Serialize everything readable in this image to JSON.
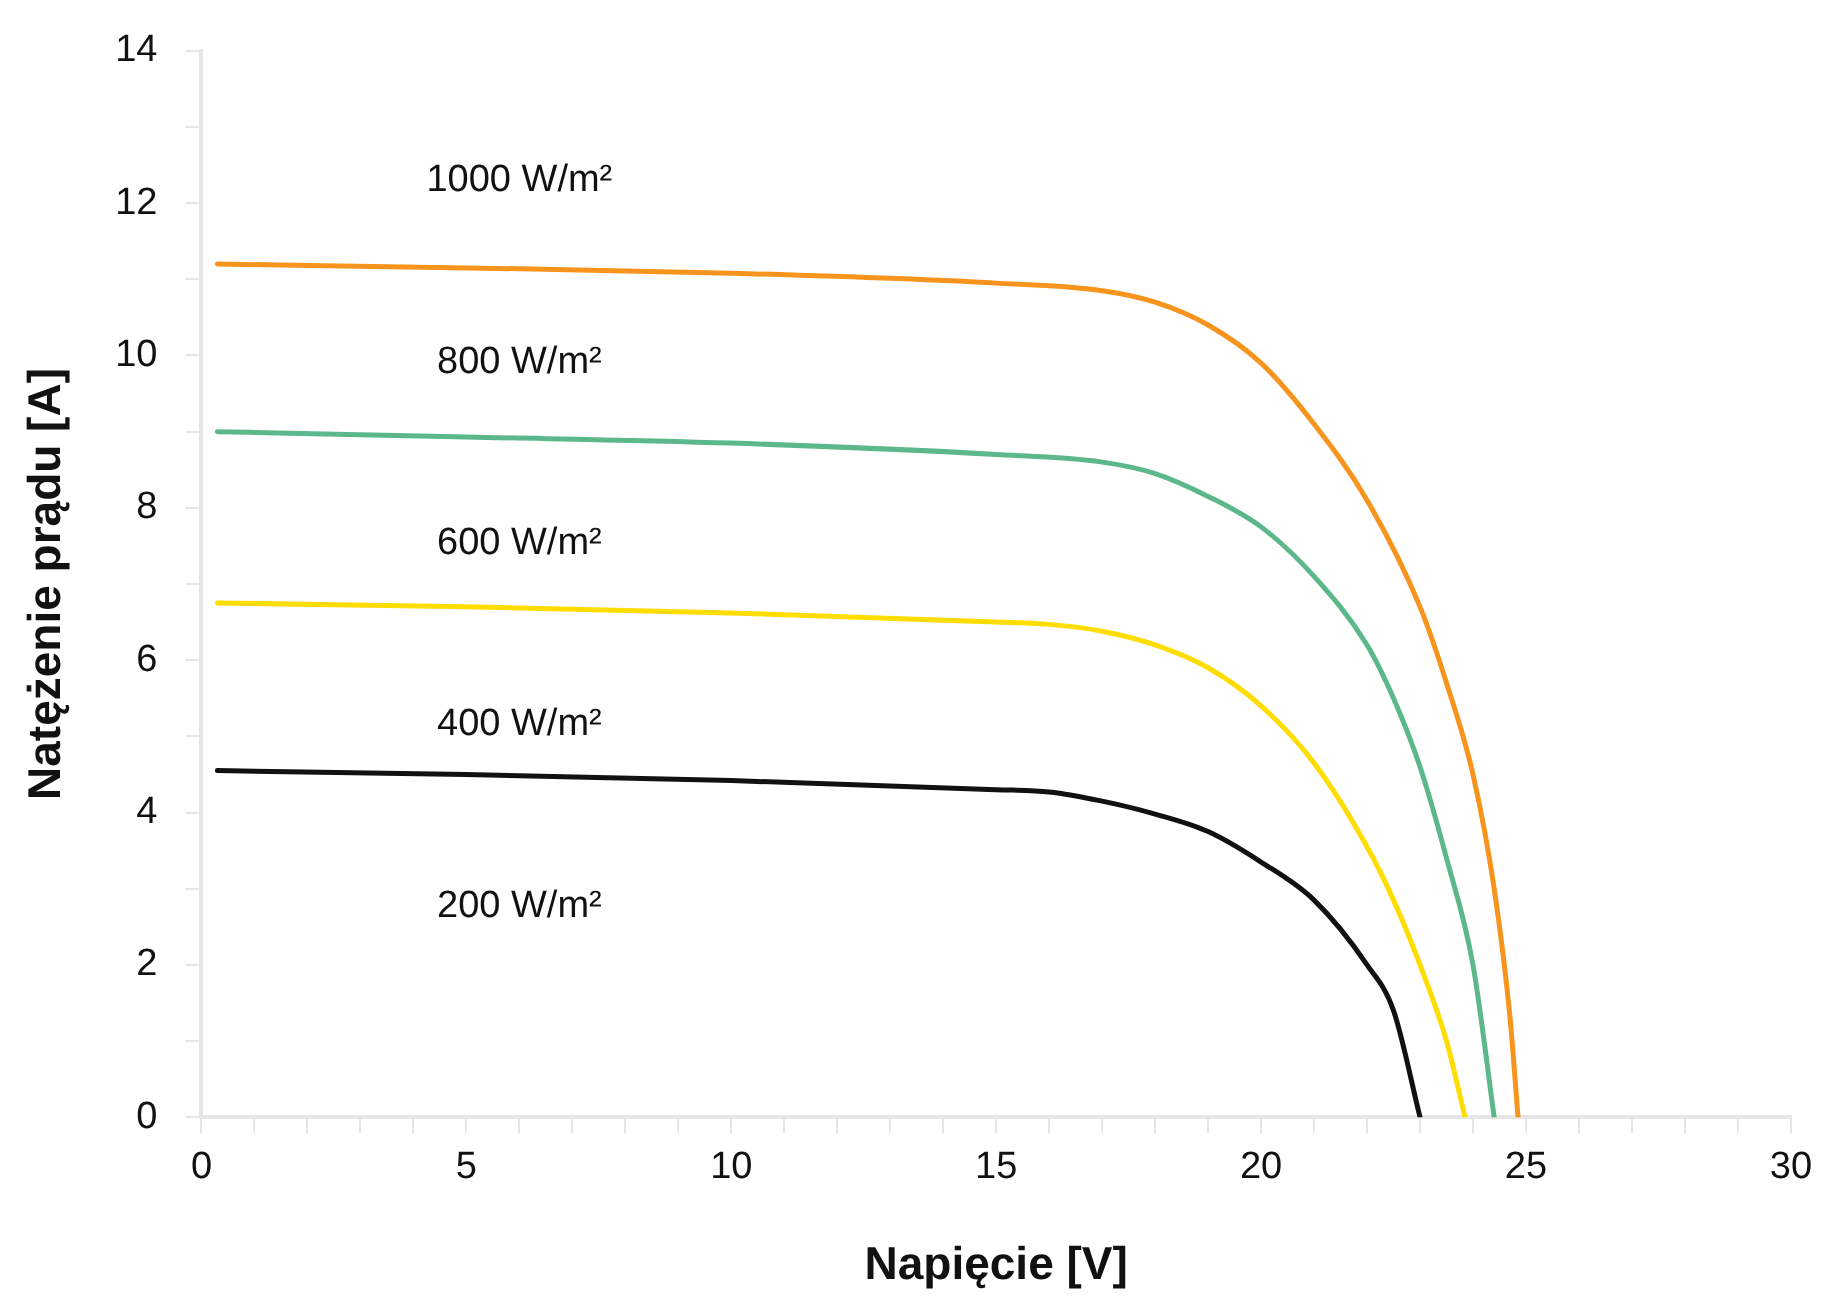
{
  "chart_data": {
    "type": "line",
    "xlabel": "Napięcie [V]",
    "ylabel": "Natężenie prądu [A]",
    "xlim": [
      0,
      30
    ],
    "ylim": [
      0,
      14
    ],
    "xticks": [
      0,
      {
        "value": 1,
        "label": null
      },
      {
        "value": 2,
        "label": null
      },
      {
        "value": 3,
        "label": null
      },
      {
        "value": 4,
        "label": null
      },
      5,
      {
        "value": 6,
        "label": null
      },
      {
        "value": 7,
        "label": null
      },
      {
        "value": 8,
        "label": null
      },
      {
        "value": 9,
        "label": null
      },
      10,
      {
        "value": 11,
        "label": null
      },
      {
        "value": 12,
        "label": null
      },
      {
        "value": 13,
        "label": null
      },
      {
        "value": 14,
        "label": null
      },
      15,
      {
        "value": 16,
        "label": null
      },
      {
        "value": 17,
        "label": null
      },
      {
        "value": 18,
        "label": null
      },
      {
        "value": 19,
        "label": null
      },
      20,
      {
        "value": 21,
        "label": null
      },
      {
        "value": 22,
        "label": null
      },
      {
        "value": 23,
        "label": null
      },
      {
        "value": 24,
        "label": null
      },
      25,
      {
        "value": 26,
        "label": null
      },
      {
        "value": 27,
        "label": null
      },
      {
        "value": 28,
        "label": null
      },
      {
        "value": 29,
        "label": null
      },
      30
    ],
    "yticks": [
      0,
      {
        "value": 1,
        "label": null
      },
      2,
      {
        "value": 3,
        "label": null
      },
      4,
      {
        "value": 5,
        "label": null
      },
      6,
      {
        "value": 7,
        "label": null
      },
      8,
      {
        "value": 9,
        "label": null
      },
      10,
      {
        "value": 11,
        "label": null
      },
      12,
      {
        "value": 13,
        "label": null
      },
      14
    ],
    "grid": false,
    "legend": false,
    "marker": "none",
    "line_style": "solid",
    "series": [
      {
        "color": "#f7941d",
        "x": [
          0.3,
          5,
          10,
          15,
          17,
          18,
          19,
          20,
          21,
          22,
          23,
          23.5,
          24,
          24.4,
          24.7,
          24.85
        ],
        "values": [
          11.2,
          11.15,
          11.08,
          10.95,
          10.85,
          10.7,
          10.4,
          9.9,
          9.1,
          8.1,
          6.7,
          5.7,
          4.5,
          3,
          1.3,
          0
        ]
      },
      {
        "color": "#5cb88a",
        "x": [
          0.3,
          5,
          10,
          15,
          17,
          18,
          19,
          20,
          21,
          22,
          22.5,
          23,
          23.5,
          24,
          24.4
        ],
        "values": [
          9.0,
          8.93,
          8.85,
          8.7,
          8.6,
          8.45,
          8.15,
          7.75,
          7.1,
          6.2,
          5.5,
          4.6,
          3.4,
          2.0,
          0
        ]
      },
      {
        "color": "#ffdd00",
        "x": [
          0.3,
          5,
          10,
          15,
          16,
          17,
          18,
          19,
          20,
          21,
          22,
          22.5,
          23,
          23.5,
          23.85
        ],
        "values": [
          6.75,
          6.7,
          6.62,
          6.5,
          6.47,
          6.38,
          6.2,
          5.9,
          5.4,
          4.65,
          3.55,
          2.85,
          2.0,
          1.0,
          0
        ]
      },
      {
        "color": "#111111",
        "x": [
          0.3,
          5,
          10,
          15,
          16,
          17,
          18,
          19,
          20,
          21,
          22,
          22.5,
          23
        ],
        "values": [
          4.55,
          4.5,
          4.42,
          4.3,
          4.27,
          4.15,
          3.98,
          3.75,
          3.35,
          2.85,
          2.0,
          1.4,
          0
        ]
      }
    ],
    "annotations": [
      "1000 W/m²",
      "800 W/m²",
      "600 W/m²",
      "400 W/m²",
      "200 W/m²"
    ]
  }
}
